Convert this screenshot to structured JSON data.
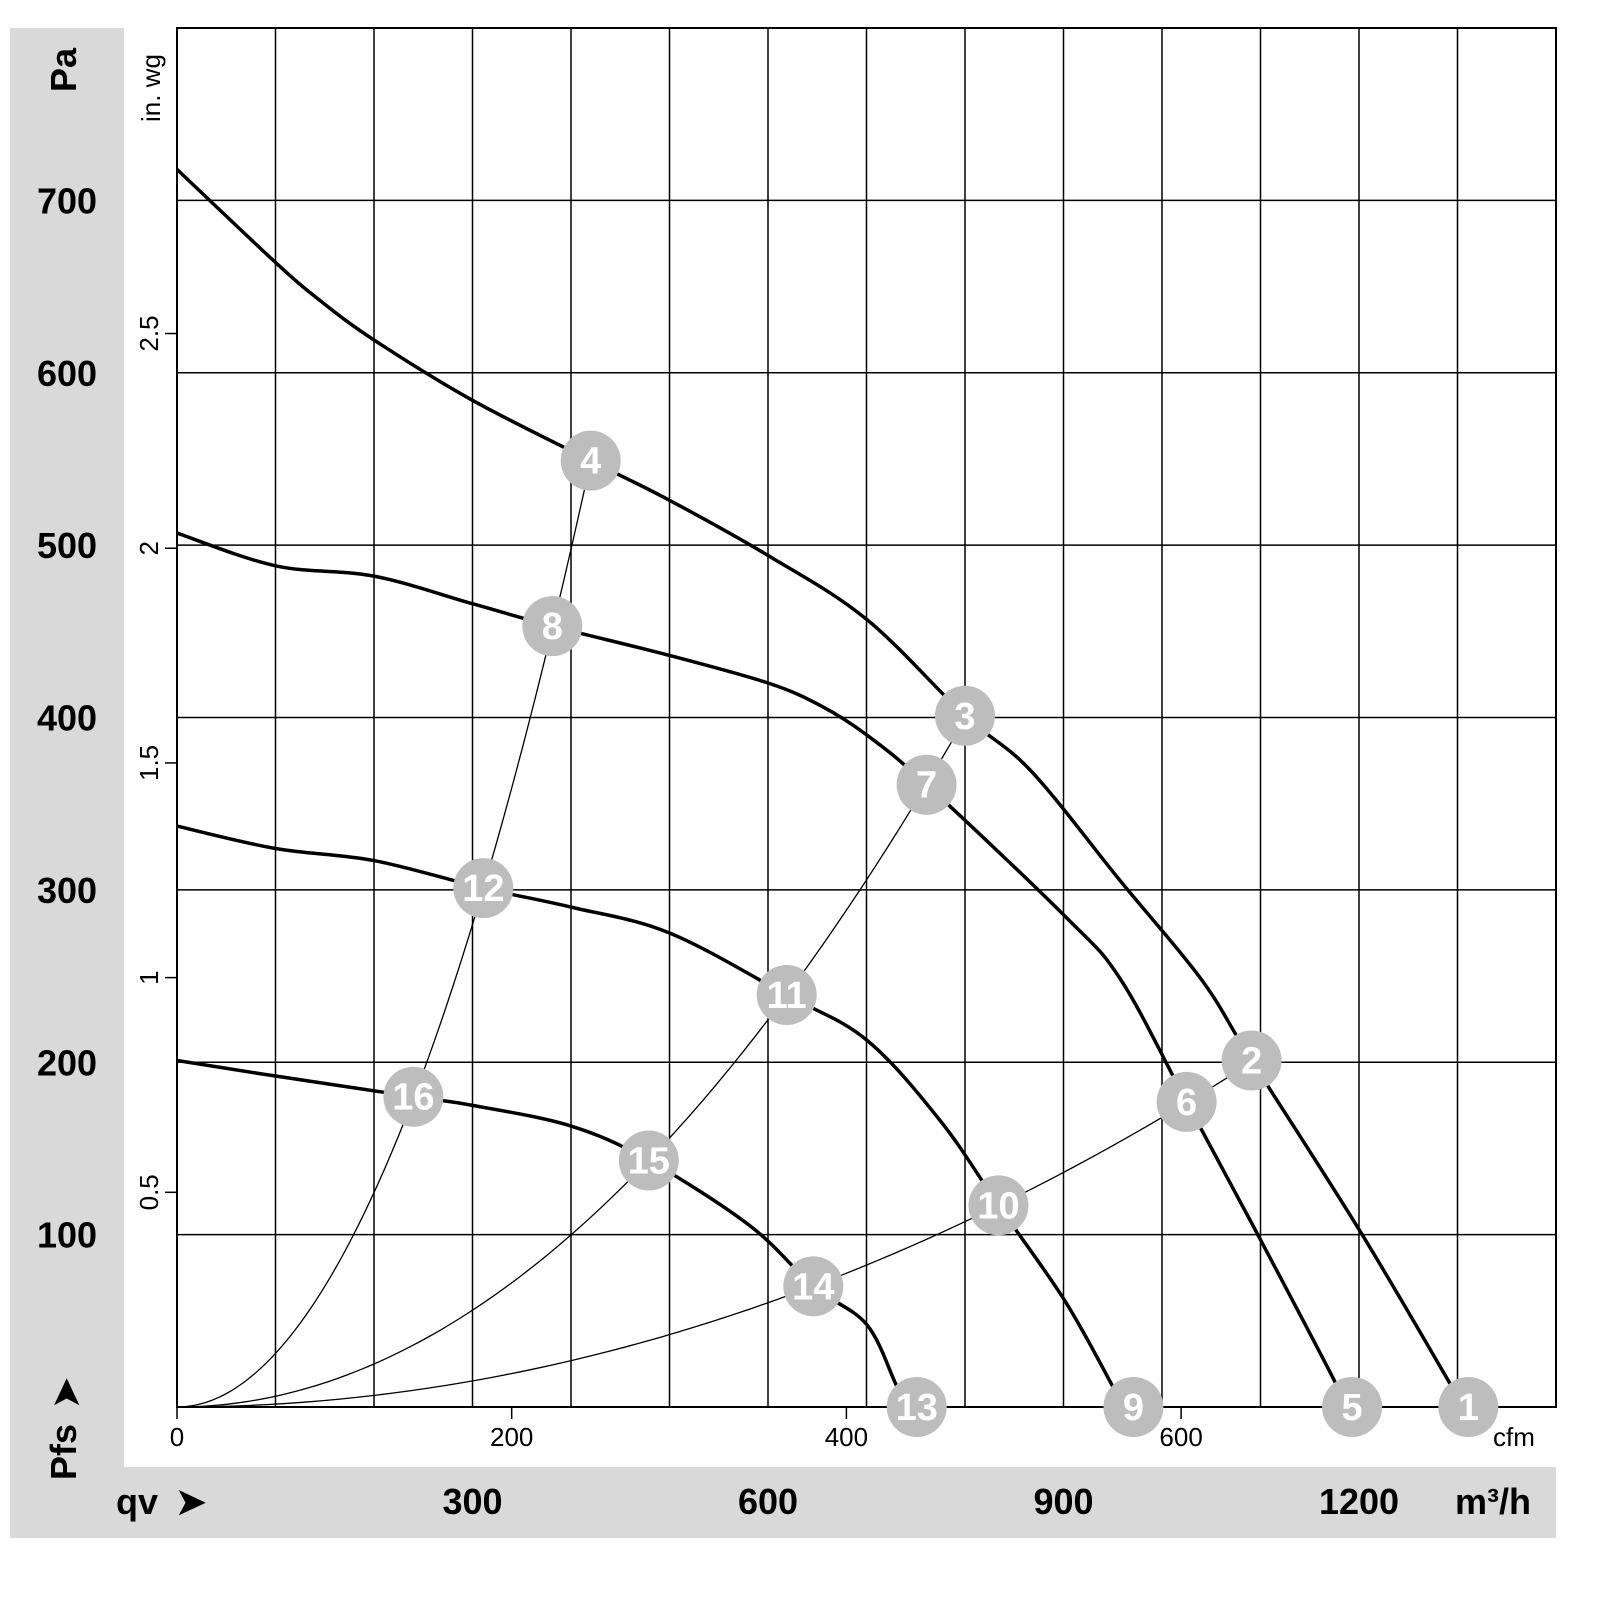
{
  "chart_data": {
    "type": "line",
    "x_unit": "m³/h",
    "y_unit": "Pa",
    "x_label": "qv",
    "y_label": "Pfs",
    "xlim": [
      0,
      1400
    ],
    "ylim": [
      0,
      800
    ],
    "grid": true,
    "x_ticks": [
      300,
      600,
      900,
      1200
    ],
    "y_ticks": [
      100,
      200,
      300,
      400,
      500,
      600,
      700
    ],
    "secondary_x": {
      "unit": "cfm",
      "ticks": [
        0,
        200,
        400,
        600
      ]
    },
    "secondary_y": {
      "unit": "in. wg",
      "ticks": [
        0.5,
        1,
        1.5,
        2,
        2.5
      ]
    },
    "colors": {
      "panel": "#d9d9d9",
      "marker": "#bdbdbd",
      "marker_text": "#ffffff",
      "curve": "#000000"
    },
    "fan_curves": [
      {
        "points": [
          [
            0,
            718
          ],
          [
            100,
            664
          ],
          [
            145,
            642
          ],
          [
            200,
            619
          ],
          [
            300,
            584
          ],
          [
            420,
            549
          ],
          [
            500,
            526
          ],
          [
            600,
            494
          ],
          [
            700,
            457
          ],
          [
            800,
            401
          ],
          [
            867,
            369
          ],
          [
            958,
            305
          ],
          [
            1040,
            248
          ],
          [
            1091,
            201
          ],
          [
            1200,
            103
          ],
          [
            1293,
            13
          ],
          [
            1305,
            0
          ]
        ]
      },
      {
        "points": [
          [
            0,
            507
          ],
          [
            100,
            488
          ],
          [
            200,
            482
          ],
          [
            300,
            466
          ],
          [
            381,
            453
          ],
          [
            500,
            436
          ],
          [
            600,
            420
          ],
          [
            653,
            407
          ],
          [
            700,
            390
          ],
          [
            761,
            361
          ],
          [
            901,
            285
          ],
          [
            958,
            248
          ],
          [
            1025,
            177
          ],
          [
            1100,
            97
          ],
          [
            1177,
            13
          ],
          [
            1185,
            0
          ]
        ]
      },
      {
        "points": [
          [
            0,
            337
          ],
          [
            100,
            324
          ],
          [
            200,
            317
          ],
          [
            311,
            301
          ],
          [
            400,
            290
          ],
          [
            500,
            275
          ],
          [
            619,
            239
          ],
          [
            700,
            213
          ],
          [
            775,
            166
          ],
          [
            834,
            117
          ],
          [
            901,
            62
          ],
          [
            948,
            14
          ],
          [
            960,
            0
          ]
        ]
      },
      {
        "points": [
          [
            0,
            201
          ],
          [
            100,
            192
          ],
          [
            240,
            180
          ],
          [
            300,
            175
          ],
          [
            400,
            163
          ],
          [
            479,
            143
          ],
          [
            582,
            105
          ],
          [
            646,
            70
          ],
          [
            700,
            48
          ],
          [
            730,
            13
          ],
          [
            742,
            0
          ]
        ]
      }
    ],
    "system_curves": [
      {
        "k": 0.00311,
        "q_max": 422
      },
      {
        "k": 0.000624,
        "q_max": 802
      },
      {
        "k": 0.000168,
        "q_max": 1093
      }
    ],
    "markers": [
      {
        "label": "1",
        "q": 1311,
        "p": 0
      },
      {
        "label": "2",
        "q": 1091,
        "p": 201
      },
      {
        "label": "3",
        "q": 800,
        "p": 401
      },
      {
        "label": "4",
        "q": 420,
        "p": 549
      },
      {
        "label": "5",
        "q": 1193,
        "p": 0
      },
      {
        "label": "6",
        "q": 1025,
        "p": 177
      },
      {
        "label": "7",
        "q": 761,
        "p": 361
      },
      {
        "label": "8",
        "q": 381,
        "p": 453
      },
      {
        "label": "9",
        "q": 971,
        "p": 0
      },
      {
        "label": "10",
        "q": 834,
        "p": 117
      },
      {
        "label": "11",
        "q": 619,
        "p": 239
      },
      {
        "label": "12",
        "q": 311,
        "p": 301
      },
      {
        "label": "13",
        "q": 751,
        "p": 0
      },
      {
        "label": "14",
        "q": 646,
        "p": 70
      },
      {
        "label": "15",
        "q": 479,
        "p": 143
      },
      {
        "label": "16",
        "q": 240,
        "p": 180
      }
    ]
  },
  "labels": {
    "pa": "Pa",
    "pfs": "Pfs",
    "qv": "qv",
    "m3h": "m³/h",
    "cfm": "cfm",
    "inwg": "in. wg",
    "arrow": "➤"
  }
}
